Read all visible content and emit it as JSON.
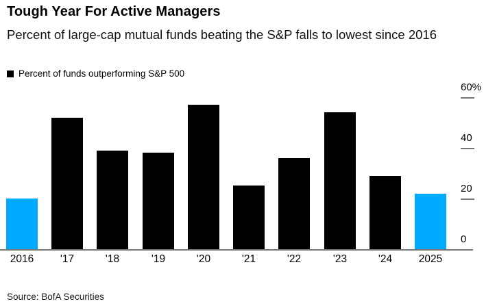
{
  "header": {
    "title": "Tough Year For Active Managers",
    "subtitle": "Percent of large-cap mutual funds beating the S&P falls to lowest since 2016"
  },
  "legend": {
    "label": "Percent of funds outperforming S&P 500",
    "swatch_color": "#000000"
  },
  "chart_data": {
    "type": "bar",
    "title": "Tough Year For Active Managers",
    "subtitle": "Percent of large-cap mutual funds beating the S&P falls to lowest since 2016",
    "legend": "Percent of funds outperforming S&P 500",
    "categories": [
      "2016",
      "'17",
      "'18",
      "'19",
      "'20",
      "'21",
      "'22",
      "'23",
      "'24",
      "2025"
    ],
    "values": [
      20,
      52,
      39,
      38,
      57,
      25,
      36,
      54,
      29,
      22
    ],
    "bar_colors": [
      "#00aaff",
      "#000000",
      "#000000",
      "#000000",
      "#000000",
      "#000000",
      "#000000",
      "#000000",
      "#000000",
      "#00aaff"
    ],
    "highlight_color": "#00aaff",
    "default_color": "#000000",
    "xlabel": "",
    "ylabel": "",
    "ylim": [
      0,
      66
    ],
    "yticks": [
      0,
      20,
      40,
      60
    ],
    "ytick_labels": [
      "0",
      "20",
      "40",
      "60%"
    ],
    "axis_side": "right",
    "grid": false,
    "unit": "%"
  },
  "footer": {
    "source": "Source: BofA Securities"
  }
}
